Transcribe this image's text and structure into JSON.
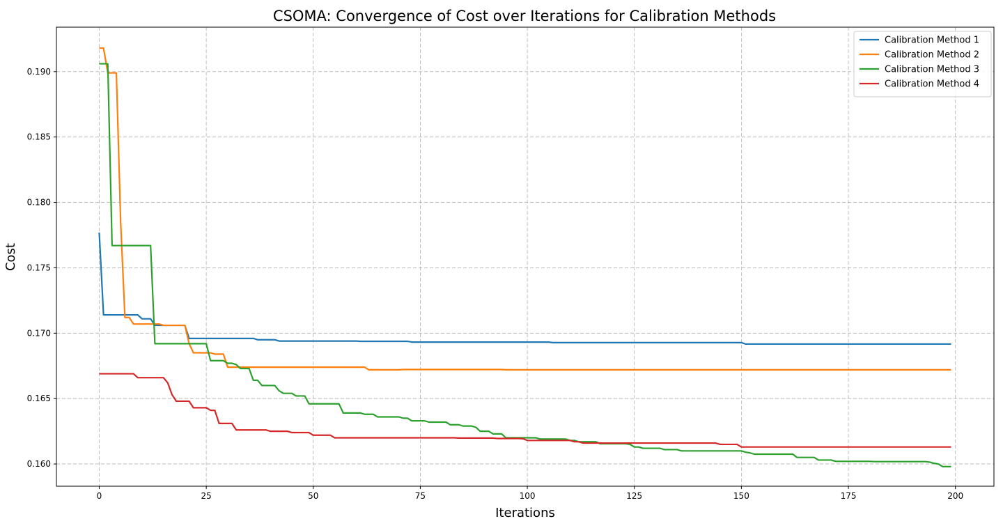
{
  "chart_data": {
    "type": "line",
    "title": "CSOMA: Convergence of Cost over Iterations for Calibration Methods",
    "xlabel": "Iterations",
    "ylabel": "Cost",
    "xlim": [
      -10,
      209
    ],
    "ylim": [
      0.1583,
      0.1934
    ],
    "xticks": [
      0,
      25,
      50,
      75,
      100,
      125,
      150,
      175,
      200
    ],
    "yticks": [
      0.16,
      0.165,
      0.17,
      0.175,
      0.18,
      0.185,
      0.19
    ],
    "grid": true,
    "legend_position": "top-right",
    "series": [
      {
        "name": "Calibration Method 1",
        "color": "#1f77b4",
        "steps": [
          [
            0,
            0.1777
          ],
          [
            1,
            0.1714
          ],
          [
            10,
            0.1711
          ],
          [
            13,
            0.1706
          ],
          [
            21,
            0.1696
          ],
          [
            37,
            0.1695
          ],
          [
            42,
            0.1694
          ],
          [
            61,
            0.16938
          ],
          [
            73,
            0.16932
          ],
          [
            106,
            0.16928
          ],
          [
            151,
            0.16917
          ],
          [
            199,
            0.16917
          ]
        ]
      },
      {
        "name": "Calibration Method 2",
        "color": "#ff7f0e",
        "steps": [
          [
            0,
            0.1918
          ],
          [
            1,
            0.1918
          ],
          [
            2,
            0.1899
          ],
          [
            4,
            0.1899
          ],
          [
            5,
            0.1785
          ],
          [
            6,
            0.1712
          ],
          [
            7,
            0.1712
          ],
          [
            8,
            0.1707
          ],
          [
            15,
            0.1706
          ],
          [
            20,
            0.1706
          ],
          [
            21,
            0.1692
          ],
          [
            22,
            0.1685
          ],
          [
            26,
            0.1685
          ],
          [
            27,
            0.1684
          ],
          [
            29,
            0.1684
          ],
          [
            30,
            0.1674
          ],
          [
            34,
            0.1674
          ],
          [
            62,
            0.1674
          ],
          [
            63,
            0.1672
          ],
          [
            70,
            0.1672
          ],
          [
            71,
            0.16722
          ],
          [
            95,
            0.1672
          ],
          [
            199,
            0.1672
          ]
        ]
      },
      {
        "name": "Calibration Method 3",
        "color": "#2ca02c",
        "steps": [
          [
            0,
            0.1906
          ],
          [
            1,
            0.1906
          ],
          [
            3,
            0.1767
          ],
          [
            12,
            0.1767
          ],
          [
            13,
            0.1692
          ],
          [
            25,
            0.1692
          ],
          [
            26,
            0.1679
          ],
          [
            29,
            0.1679
          ],
          [
            30,
            0.1677
          ],
          [
            32,
            0.1676
          ],
          [
            33,
            0.1673
          ],
          [
            35,
            0.1673
          ],
          [
            36,
            0.1664
          ],
          [
            37,
            0.1664
          ],
          [
            38,
            0.166
          ],
          [
            41,
            0.166
          ],
          [
            42,
            0.1656
          ],
          [
            43,
            0.1654
          ],
          [
            45,
            0.1654
          ],
          [
            46,
            0.1652
          ],
          [
            48,
            0.1652
          ],
          [
            49,
            0.1646
          ],
          [
            56,
            0.1646
          ],
          [
            57,
            0.1639
          ],
          [
            62,
            0.1638
          ],
          [
            64,
            0.1638
          ],
          [
            65,
            0.1636
          ],
          [
            70,
            0.1636
          ],
          [
            71,
            0.1635
          ],
          [
            73,
            0.1633
          ],
          [
            77,
            0.1632
          ],
          [
            81,
            0.1632
          ],
          [
            82,
            0.163
          ],
          [
            85,
            0.1629
          ],
          [
            88,
            0.1628
          ],
          [
            89,
            0.1625
          ],
          [
            91,
            0.1625
          ],
          [
            92,
            0.1623
          ],
          [
            94,
            0.1623
          ],
          [
            95,
            0.162
          ],
          [
            100,
            0.162
          ],
          [
            102,
            0.162
          ],
          [
            103,
            0.1619
          ],
          [
            108,
            0.1619
          ],
          [
            110,
            0.1618
          ],
          [
            112,
            0.1617
          ],
          [
            117,
            0.16155
          ],
          [
            124,
            0.1615
          ],
          [
            125,
            0.1613
          ],
          [
            127,
            0.1612
          ],
          [
            131,
            0.1612
          ],
          [
            132,
            0.1611
          ],
          [
            135,
            0.1611
          ],
          [
            136,
            0.161
          ],
          [
            150,
            0.161
          ],
          [
            151,
            0.1609
          ],
          [
            152,
            0.16085
          ],
          [
            153,
            0.16075
          ],
          [
            162,
            0.16075
          ],
          [
            163,
            0.1605
          ],
          [
            167,
            0.1605
          ],
          [
            168,
            0.1603
          ],
          [
            171,
            0.1603
          ],
          [
            172,
            0.1602
          ],
          [
            180,
            0.1602
          ],
          [
            181,
            0.16018
          ],
          [
            191,
            0.16018
          ],
          [
            194,
            0.16014
          ],
          [
            195,
            0.16005
          ],
          [
            196,
            0.16
          ],
          [
            197,
            0.1598
          ],
          [
            199,
            0.1598
          ]
        ]
      },
      {
        "name": "Calibration Method 4",
        "color": "#d62728",
        "steps": [
          [
            0,
            0.1669
          ],
          [
            8,
            0.1669
          ],
          [
            9,
            0.1666
          ],
          [
            15,
            0.1666
          ],
          [
            16,
            0.1662
          ],
          [
            17,
            0.1653
          ],
          [
            18,
            0.1648
          ],
          [
            21,
            0.1648
          ],
          [
            22,
            0.1643
          ],
          [
            25,
            0.1643
          ],
          [
            26,
            0.1641
          ],
          [
            27,
            0.1641
          ],
          [
            28,
            0.1631
          ],
          [
            31,
            0.1631
          ],
          [
            32,
            0.1626
          ],
          [
            39,
            0.1626
          ],
          [
            40,
            0.1625
          ],
          [
            44,
            0.1625
          ],
          [
            45,
            0.1624
          ],
          [
            49,
            0.1624
          ],
          [
            50,
            0.1622
          ],
          [
            54,
            0.1622
          ],
          [
            55,
            0.162
          ],
          [
            84,
            0.16198
          ],
          [
            93,
            0.16195
          ],
          [
            99,
            0.16193
          ],
          [
            100,
            0.1618
          ],
          [
            110,
            0.1618
          ],
          [
            111,
            0.1617
          ],
          [
            113,
            0.1616
          ],
          [
            144,
            0.1616
          ],
          [
            145,
            0.1615
          ],
          [
            149,
            0.1615
          ],
          [
            150,
            0.1613
          ],
          [
            199,
            0.1613
          ]
        ]
      }
    ]
  }
}
